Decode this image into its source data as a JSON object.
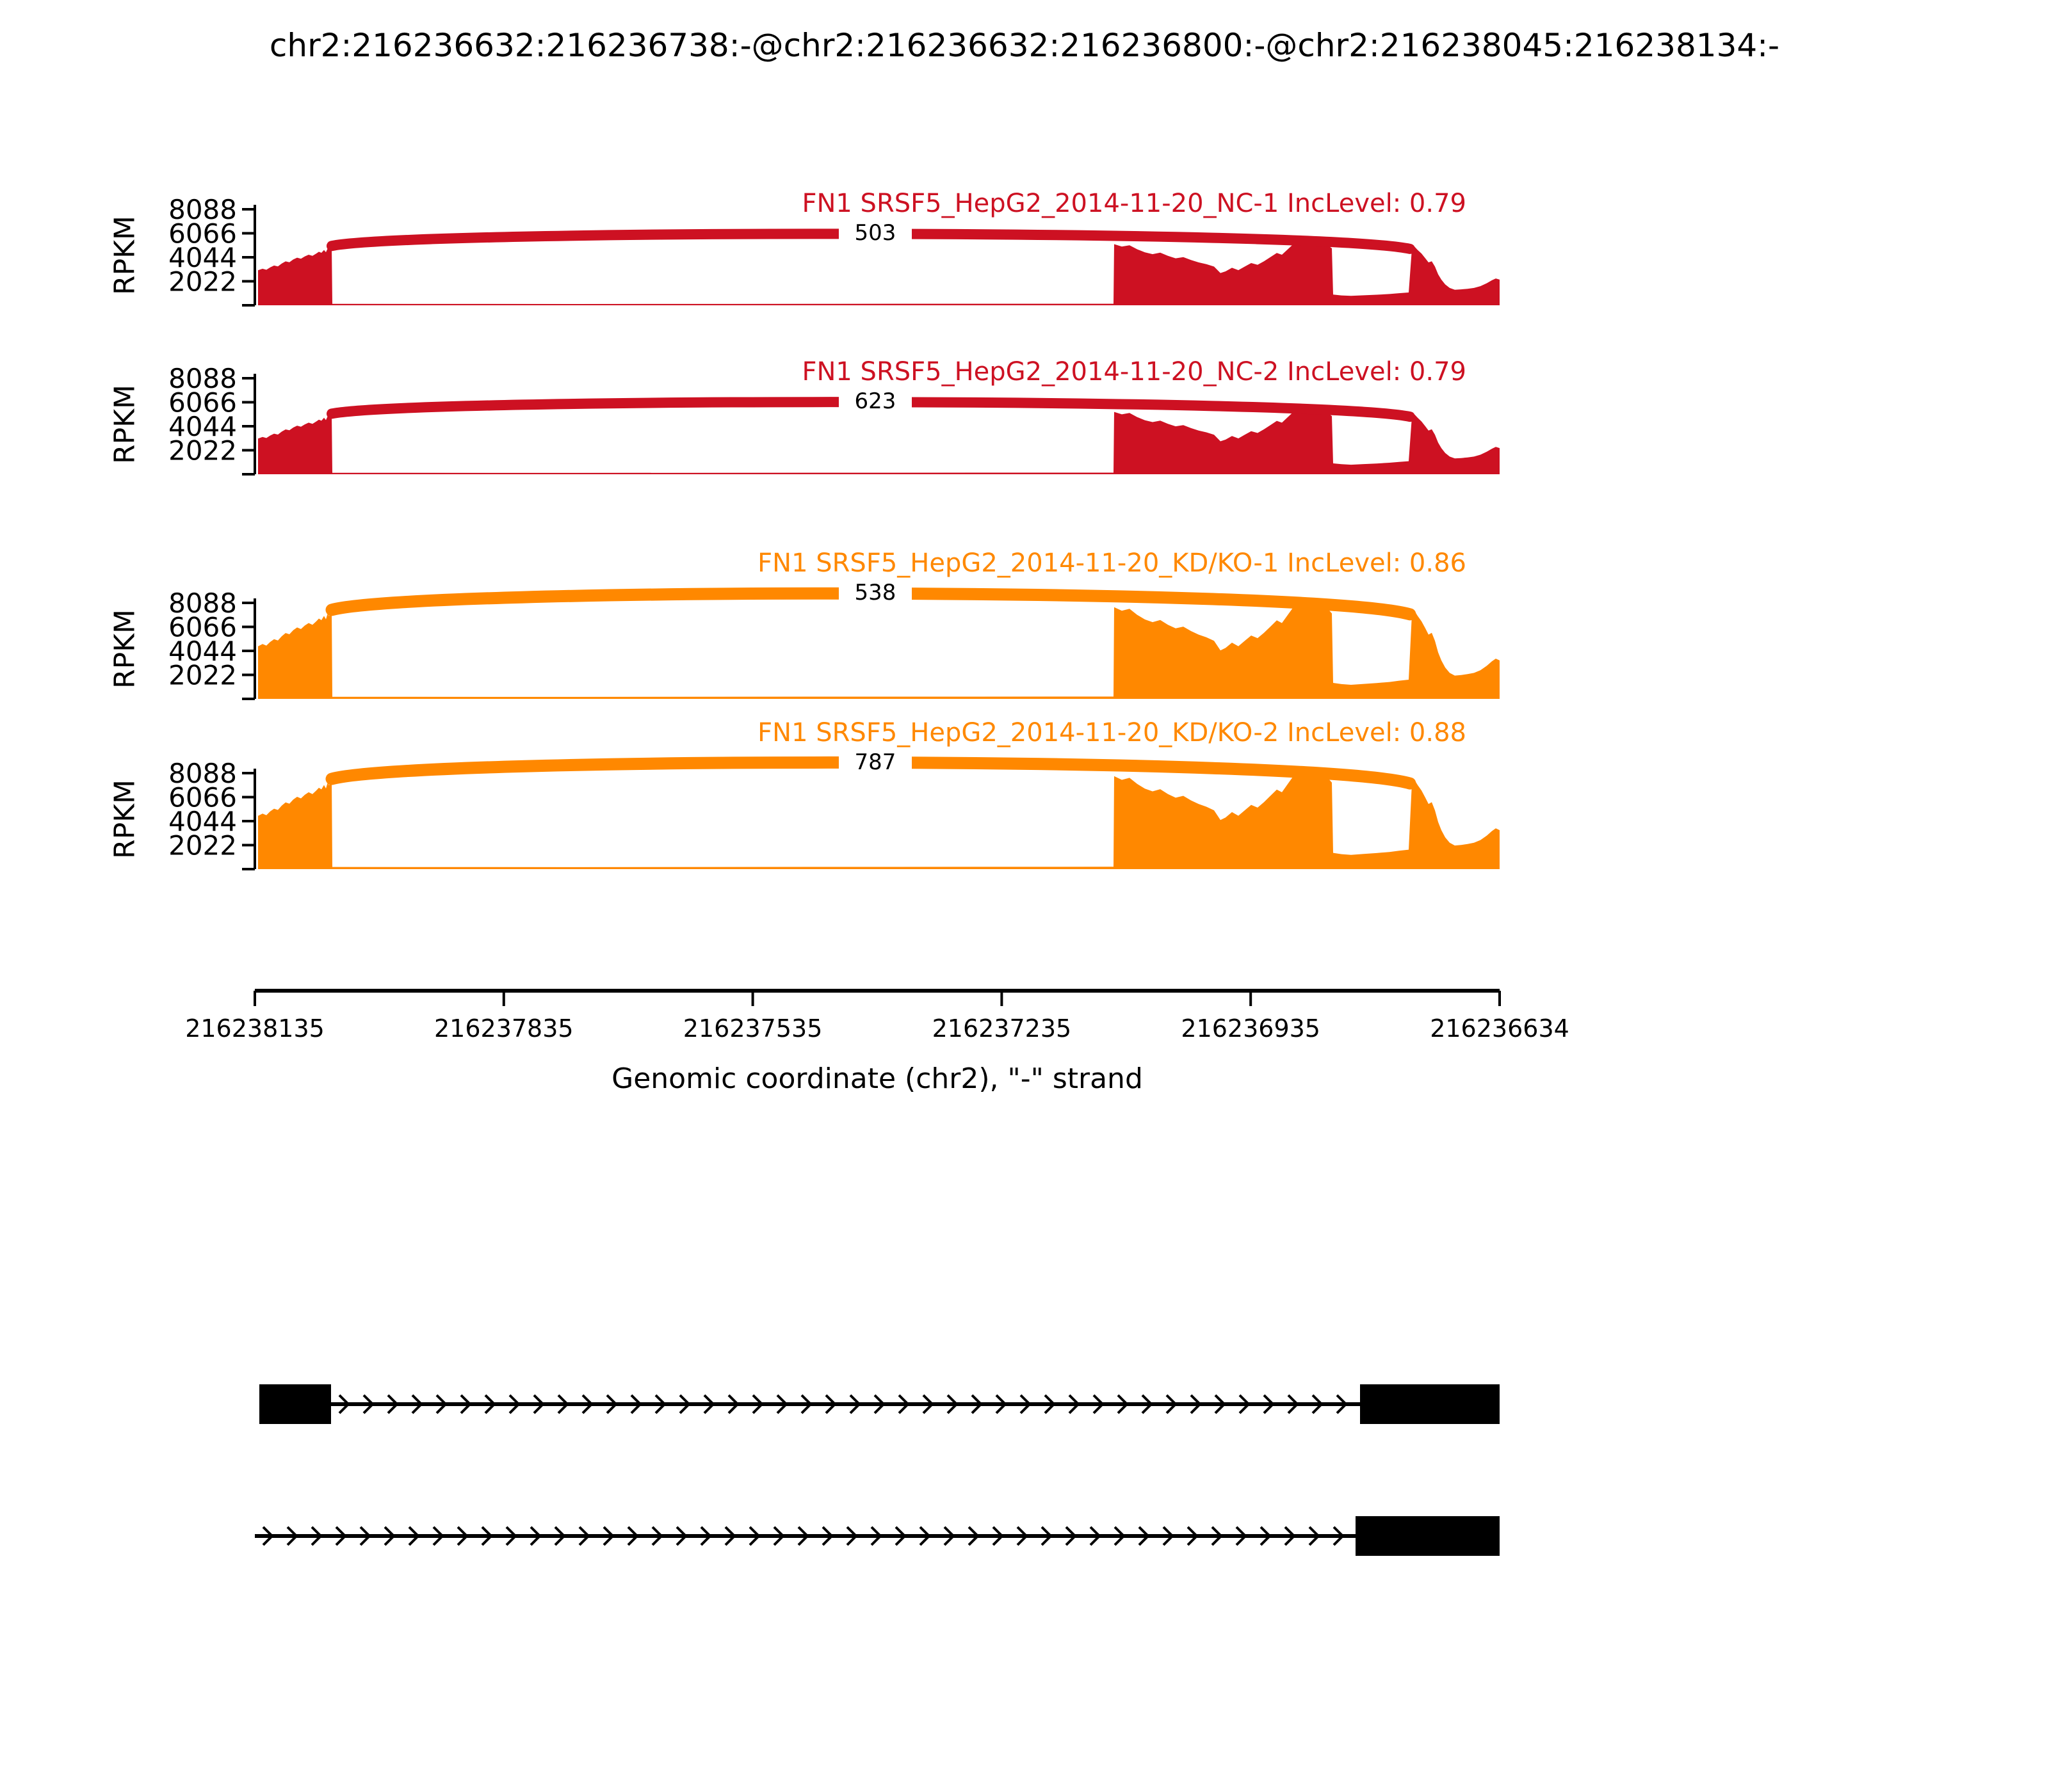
{
  "title": "chr2:216236632:216236738:-@chr2:216236632:216236800:-@chr2:216238045:216238134:-",
  "chart_data": {
    "type": "sashimi",
    "ylabel": "RPKM",
    "y_ticks": [
      2022,
      4044,
      6066,
      8088
    ],
    "y_max_rpkm": 8088,
    "x_axis": {
      "label": "Genomic coordinate (chr2), \"-\" strand",
      "ticks": [
        "216238135",
        "216237835",
        "216237535",
        "216237235",
        "216236935",
        "216236634"
      ]
    },
    "tracks": [
      {
        "label": "FN1 SRSF5_HepG2_2014-11-20_NC-1 IncLevel: 0.79",
        "sample": "SRSF5_HepG2_2014-11-20_NC-1",
        "gene": "FN1",
        "inc_level": 0.79,
        "junction_count": 503,
        "color": "#CD1122",
        "scale": 1.0,
        "arc_apex_rpkm": 6400
      },
      {
        "label": "FN1 SRSF5_HepG2_2014-11-20_NC-2 IncLevel: 0.79",
        "sample": "SRSF5_HepG2_2014-11-20_NC-2",
        "gene": "FN1",
        "inc_level": 0.79,
        "junction_count": 623,
        "color": "#CD1122",
        "scale": 1.02,
        "arc_apex_rpkm": 6450
      },
      {
        "label": "FN1 SRSF5_HepG2_2014-11-20_KD/KO-1 IncLevel: 0.86",
        "sample": "SRSF5_HepG2_2014-11-20_KD/KO-1",
        "gene": "FN1",
        "inc_level": 0.86,
        "junction_count": 538,
        "color": "#FF8800",
        "scale": 1.5,
        "arc_apex_rpkm": 9400
      },
      {
        "label": "FN1 SRSF5_HepG2_2014-11-20_KD/KO-2 IncLevel: 0.88",
        "sample": "SRSF5_HepG2_2014-11-20_KD/KO-2",
        "gene": "FN1",
        "inc_level": 0.88,
        "junction_count": 787,
        "color": "#FF8800",
        "scale": 1.52,
        "arc_apex_rpkm": 9500
      }
    ],
    "junction": {
      "x0": 518,
      "x1": 2202,
      "takeoff_rpkm": 5000,
      "landing_rpkm": 4750
    },
    "coverage_profile": [
      [
        403,
        2950
      ],
      [
        410,
        3080
      ],
      [
        416,
        2990
      ],
      [
        422,
        3200
      ],
      [
        428,
        3350
      ],
      [
        434,
        3280
      ],
      [
        440,
        3520
      ],
      [
        446,
        3700
      ],
      [
        452,
        3630
      ],
      [
        458,
        3860
      ],
      [
        464,
        4010
      ],
      [
        470,
        3920
      ],
      [
        476,
        4120
      ],
      [
        482,
        4260
      ],
      [
        488,
        4160
      ],
      [
        494,
        4360
      ],
      [
        498,
        4510
      ],
      [
        502,
        4420
      ],
      [
        506,
        4660
      ],
      [
        509,
        4470
      ],
      [
        512,
        4820
      ],
      [
        514,
        4640
      ],
      [
        516,
        4960
      ],
      [
        518,
        5000
      ],
      [
        519,
        120
      ],
      [
        900,
        110
      ],
      [
        1300,
        125
      ],
      [
        1739,
        130
      ],
      [
        1740,
        5150
      ],
      [
        1752,
        4950
      ],
      [
        1764,
        5060
      ],
      [
        1776,
        4720
      ],
      [
        1788,
        4460
      ],
      [
        1800,
        4310
      ],
      [
        1812,
        4430
      ],
      [
        1824,
        4160
      ],
      [
        1836,
        3960
      ],
      [
        1848,
        4060
      ],
      [
        1860,
        3810
      ],
      [
        1872,
        3610
      ],
      [
        1884,
        3460
      ],
      [
        1896,
        3260
      ],
      [
        1906,
        2720
      ],
      [
        1914,
        2860
      ],
      [
        1924,
        3160
      ],
      [
        1934,
        2960
      ],
      [
        1944,
        3260
      ],
      [
        1954,
        3560
      ],
      [
        1964,
        3410
      ],
      [
        1974,
        3710
      ],
      [
        1984,
        4060
      ],
      [
        1994,
        4410
      ],
      [
        2002,
        4260
      ],
      [
        2012,
        4760
      ],
      [
        2022,
        5260
      ],
      [
        2032,
        5500
      ],
      [
        2042,
        5360
      ],
      [
        2052,
        5460
      ],
      [
        2062,
        5160
      ],
      [
        2070,
        5260
      ],
      [
        2076,
        4960
      ],
      [
        2080,
        4800
      ],
      [
        2082,
        900
      ],
      [
        2095,
        830
      ],
      [
        2110,
        790
      ],
      [
        2130,
        840
      ],
      [
        2150,
        890
      ],
      [
        2170,
        950
      ],
      [
        2185,
        1020
      ],
      [
        2200,
        1080
      ],
      [
        2205,
        4750
      ],
      [
        2209,
        4950
      ],
      [
        2214,
        4660
      ],
      [
        2220,
        4360
      ],
      [
        2226,
        3960
      ],
      [
        2231,
        3610
      ],
      [
        2236,
        3710
      ],
      [
        2241,
        3260
      ],
      [
        2246,
        2610
      ],
      [
        2251,
        2160
      ],
      [
        2257,
        1760
      ],
      [
        2264,
        1460
      ],
      [
        2272,
        1310
      ],
      [
        2282,
        1340
      ],
      [
        2292,
        1390
      ],
      [
        2302,
        1460
      ],
      [
        2312,
        1610
      ],
      [
        2322,
        1860
      ],
      [
        2330,
        2110
      ],
      [
        2336,
        2260
      ],
      [
        2342,
        2160
      ]
    ],
    "isoforms": [
      {
        "exons": [
          [
            405,
            517
          ],
          [
            2124,
            2342
          ]
        ],
        "intron_line": [
          517,
          2124
        ]
      },
      {
        "exons": [
          [
            2117,
            2342
          ]
        ],
        "intron_line": [
          398,
          2117
        ]
      }
    ]
  }
}
